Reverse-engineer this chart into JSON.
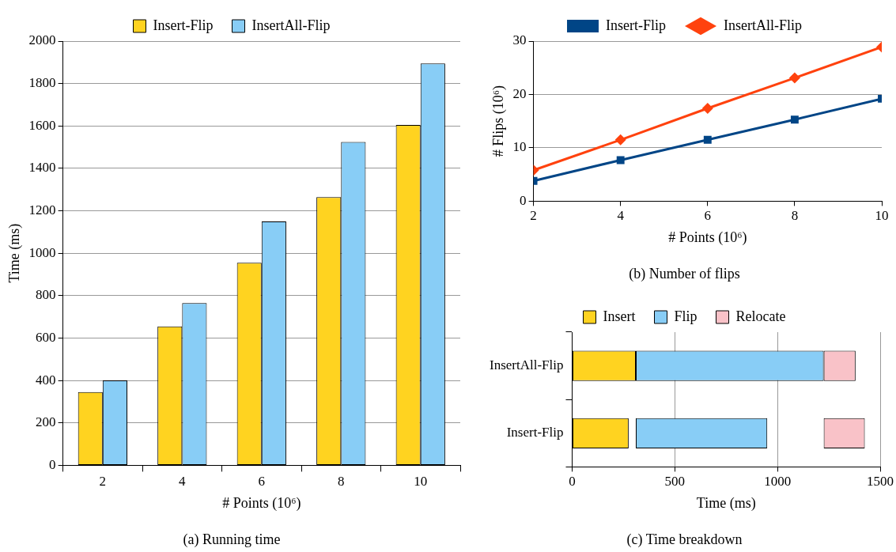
{
  "chart_data": [
    {
      "type": "bar",
      "title": "(a) Running time",
      "xlabel": "# Points (10⁶)",
      "ylabel": "Time (ms)",
      "categories": [
        "2",
        "4",
        "6",
        "8",
        "10"
      ],
      "series": [
        {
          "name": "Insert-Flip",
          "color": "#ffd320",
          "values": [
            345,
            655,
            955,
            1265,
            1605
          ]
        },
        {
          "name": "InsertAll-Flip",
          "color": "#88cdf6",
          "values": [
            400,
            765,
            1150,
            1525,
            1895
          ]
        }
      ],
      "ylim": [
        0,
        2000
      ],
      "yticks": [
        0,
        200,
        400,
        600,
        800,
        1000,
        1200,
        1400,
        1600,
        1800,
        2000
      ],
      "grid": "y",
      "legend": "top"
    },
    {
      "type": "line",
      "title": "(b) Number of flips",
      "xlabel": "# Points (10⁶)",
      "ylabel": "# Flips (10⁶)",
      "x": [
        2,
        4,
        6,
        8,
        10
      ],
      "series": [
        {
          "name": "Insert-Flip",
          "color": "#004586",
          "marker": "square",
          "values": [
            3.8,
            7.7,
            11.5,
            15.3,
            19.2
          ]
        },
        {
          "name": "InsertAll-Flip",
          "color": "#ff420e",
          "marker": "diamond",
          "values": [
            5.8,
            11.5,
            17.4,
            23.1,
            28.9
          ]
        }
      ],
      "xlim": [
        2,
        10
      ],
      "xticks": [
        2,
        4,
        6,
        8,
        10
      ],
      "ylim": [
        0,
        30
      ],
      "yticks": [
        0,
        10,
        20,
        30
      ],
      "grid": "y",
      "legend": "top",
      "line_style": "solid"
    },
    {
      "type": "bar",
      "orientation": "horizontal",
      "title": "(c) Time breakdown",
      "xlabel": "Time (ms)",
      "categories": [
        "InsertAll-Flip",
        "Insert-Flip"
      ],
      "series": [
        {
          "name": "Insert",
          "color": "#ffd320",
          "base": [
            0,
            0
          ],
          "values": [
            310,
            275
          ]
        },
        {
          "name": "Flip",
          "color": "#88cdf6",
          "base": [
            310,
            310
          ],
          "values": [
            915,
            640
          ]
        },
        {
          "name": "Relocate",
          "color": "#f9c2c8",
          "base": [
            1225,
            1225
          ],
          "values": [
            155,
            200
          ]
        }
      ],
      "xlim": [
        0,
        1500
      ],
      "xticks": [
        0,
        500,
        1000,
        1500
      ],
      "grid": "x",
      "legend": "top"
    }
  ]
}
